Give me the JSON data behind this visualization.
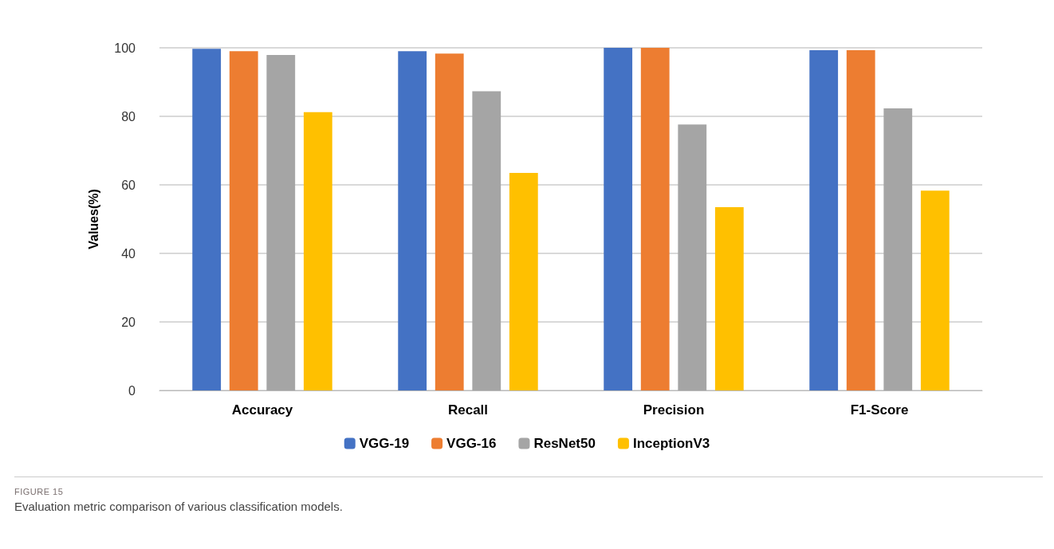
{
  "chart_data": {
    "type": "bar",
    "ylabel": "Values(%)",
    "categories": [
      "Accuracy",
      "Recall",
      "Precision",
      "F1-Score"
    ],
    "series": [
      {
        "name": "VGG-19",
        "color": "#4472c4",
        "values": [
          99.7,
          99.0,
          100,
          99.3
        ]
      },
      {
        "name": "VGG-16",
        "color": "#ed7d31",
        "values": [
          99.0,
          98.3,
          100,
          99.3
        ]
      },
      {
        "name": "ResNet50",
        "color": "#a5a5a5",
        "values": [
          97.9,
          87.3,
          77.6,
          82.3
        ]
      },
      {
        "name": "InceptionV3",
        "color": "#ffc000",
        "values": [
          81.2,
          63.5,
          53.5,
          58.3
        ]
      }
    ],
    "ylim": [
      0,
      100
    ],
    "yticks": [
      0,
      20,
      40,
      60,
      80,
      100
    ],
    "grid": "y",
    "legend": "bottom",
    "annotations": [
      "FIGURE 15",
      "Evaluation metric comparison of various classification models."
    ]
  }
}
